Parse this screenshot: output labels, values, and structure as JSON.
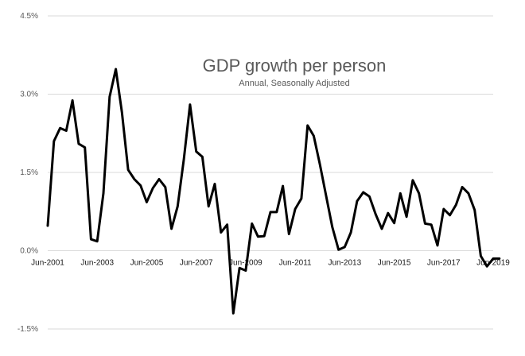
{
  "chart_data": {
    "type": "line",
    "title": "GDP growth per person",
    "subtitle": "Annual, Seasonally Adjusted",
    "xlabel": "",
    "ylabel": "",
    "ylim": [
      -1.5,
      4.5
    ],
    "y_ticks": [
      {
        "value": 4.5,
        "label": "4.5%"
      },
      {
        "value": 3.0,
        "label": "3.0%"
      },
      {
        "value": 1.5,
        "label": "1.5%"
      },
      {
        "value": 0.0,
        "label": "0.0%"
      },
      {
        "value": -1.5,
        "label": "-1.5%"
      }
    ],
    "x_start": 2001.5,
    "x_end": 2019.5,
    "x_ticks": [
      {
        "value": 2001.5,
        "label": "Jun-2001"
      },
      {
        "value": 2003.5,
        "label": "Jun-2003"
      },
      {
        "value": 2005.5,
        "label": "Jun-2005"
      },
      {
        "value": 2007.5,
        "label": "Jun-2007"
      },
      {
        "value": 2009.5,
        "label": "Jun-2009"
      },
      {
        "value": 2011.5,
        "label": "Jun-2011"
      },
      {
        "value": 2013.5,
        "label": "Jun-2013"
      },
      {
        "value": 2015.5,
        "label": "Jun-2015"
      },
      {
        "value": 2017.5,
        "label": "Jun-2017"
      },
      {
        "value": 2019.5,
        "label": "Jun-2019"
      }
    ],
    "grid": true,
    "series": [
      {
        "name": "GDP growth per person",
        "x": [
          2001.5,
          2001.75,
          2002.0,
          2002.25,
          2002.5,
          2002.75,
          2003.0,
          2003.25,
          2003.5,
          2003.75,
          2004.0,
          2004.25,
          2004.5,
          2004.75,
          2005.0,
          2005.25,
          2005.5,
          2005.75,
          2006.0,
          2006.25,
          2006.5,
          2006.75,
          2007.0,
          2007.25,
          2007.5,
          2007.75,
          2008.0,
          2008.25,
          2008.5,
          2008.75,
          2009.0,
          2009.25,
          2009.5,
          2009.75,
          2010.0,
          2010.25,
          2010.5,
          2010.75,
          2011.0,
          2011.25,
          2011.5,
          2011.75,
          2012.0,
          2012.25,
          2012.5,
          2012.75,
          2013.0,
          2013.25,
          2013.5,
          2013.75,
          2014.0,
          2014.25,
          2014.5,
          2014.75,
          2015.0,
          2015.25,
          2015.5,
          2015.75,
          2016.0,
          2016.25,
          2016.5,
          2016.75,
          2017.0,
          2017.25,
          2017.5,
          2017.75,
          2018.0,
          2018.25,
          2018.5,
          2018.75,
          2019.0,
          2019.25,
          2019.5,
          2019.75
        ],
        "values": [
          0.48,
          2.1,
          2.35,
          2.3,
          2.88,
          2.05,
          1.98,
          0.22,
          0.18,
          1.1,
          2.95,
          3.48,
          2.65,
          1.55,
          1.37,
          1.25,
          0.93,
          1.2,
          1.37,
          1.22,
          0.42,
          0.85,
          1.75,
          2.8,
          1.9,
          1.8,
          0.85,
          1.28,
          0.35,
          0.5,
          -1.2,
          -0.33,
          -0.38,
          0.52,
          0.27,
          0.28,
          0.74,
          0.74,
          1.24,
          0.32,
          0.8,
          1.0,
          2.4,
          2.2,
          1.65,
          1.05,
          0.45,
          0.02,
          0.07,
          0.35,
          0.95,
          1.12,
          1.04,
          0.7,
          0.42,
          0.72,
          0.53,
          1.1,
          0.65,
          1.35,
          1.1,
          0.52,
          0.5,
          0.1,
          0.8,
          0.68,
          0.88,
          1.22,
          1.1,
          0.78,
          -0.1,
          -0.3,
          -0.15,
          -0.15
        ]
      }
    ]
  }
}
